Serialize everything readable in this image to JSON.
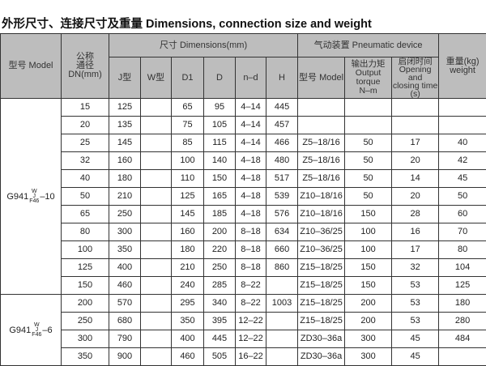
{
  "title": "外形尺寸、连接尺寸及重量 Dimensions, connection size and weight",
  "headers": {
    "model": "型号 Model",
    "dn": "公称\n通径\nDN(mm)",
    "dimensions": "尺寸 Dimensions(mm)",
    "pneumatic": "气动装置 Pneumatic device",
    "weight": "重量(kg)\nweight",
    "j": "J型",
    "w": "W型",
    "d1": "D1",
    "d": "D",
    "nd": "n–d",
    "h": "H",
    "pmodel": "型号 Model",
    "torque": "输出力矩\nOutput torque\nN–m",
    "time": "启闭时间\nOpening and\nclosing time\n(s)"
  },
  "groups": [
    {
      "model_base": "G941",
      "model_sup": "W",
      "model_mid": "J",
      "model_sub": "F46",
      "model_suffix": "–10",
      "rows": [
        [
          "15",
          "125",
          "",
          "65",
          "95",
          "4–14",
          "445",
          "",
          "",
          "",
          ""
        ],
        [
          "20",
          "135",
          "",
          "75",
          "105",
          "4–14",
          "457",
          "",
          "",
          "",
          ""
        ],
        [
          "25",
          "145",
          "",
          "85",
          "115",
          "4–14",
          "466",
          "Z5–18/16",
          "50",
          "17",
          "40"
        ],
        [
          "32",
          "160",
          "",
          "100",
          "140",
          "4–18",
          "480",
          "Z5–18/16",
          "50",
          "20",
          "42"
        ],
        [
          "40",
          "180",
          "",
          "110",
          "150",
          "4–18",
          "517",
          "Z5–18/16",
          "50",
          "14",
          "45"
        ],
        [
          "50",
          "210",
          "",
          "125",
          "165",
          "4–18",
          "539",
          "Z10–18/16",
          "50",
          "20",
          "50"
        ],
        [
          "65",
          "250",
          "",
          "145",
          "185",
          "4–18",
          "576",
          "Z10–18/16",
          "150",
          "28",
          "60"
        ],
        [
          "80",
          "300",
          "",
          "160",
          "200",
          "8–18",
          "634",
          "Z10–36/25",
          "100",
          "16",
          "70"
        ],
        [
          "100",
          "350",
          "",
          "180",
          "220",
          "8–18",
          "660",
          "Z10–36/25",
          "100",
          "17",
          "80"
        ],
        [
          "125",
          "400",
          "",
          "210",
          "250",
          "8–18",
          "860",
          "Z15–18/25",
          "150",
          "32",
          "104"
        ],
        [
          "150",
          "460",
          "",
          "240",
          "285",
          "8–22",
          "",
          "Z15–18/25",
          "150",
          "53",
          "125"
        ]
      ]
    },
    {
      "model_base": "G941",
      "model_sup": "W",
      "model_mid": "J",
      "model_sub": "F46",
      "model_suffix": "–6",
      "rows": [
        [
          "200",
          "570",
          "",
          "295",
          "340",
          "8–22",
          "1003",
          "Z15–18/25",
          "200",
          "53",
          "180"
        ],
        [
          "250",
          "680",
          "",
          "350",
          "395",
          "12–22",
          "",
          "Z15–18/25",
          "200",
          "53",
          "280"
        ],
        [
          "300",
          "790",
          "",
          "400",
          "445",
          "12–22",
          "",
          "ZD30–36a",
          "300",
          "45",
          "484"
        ],
        [
          "350",
          "900",
          "",
          "460",
          "505",
          "16–22",
          "",
          "ZD30–36a",
          "300",
          "45",
          ""
        ]
      ]
    }
  ]
}
